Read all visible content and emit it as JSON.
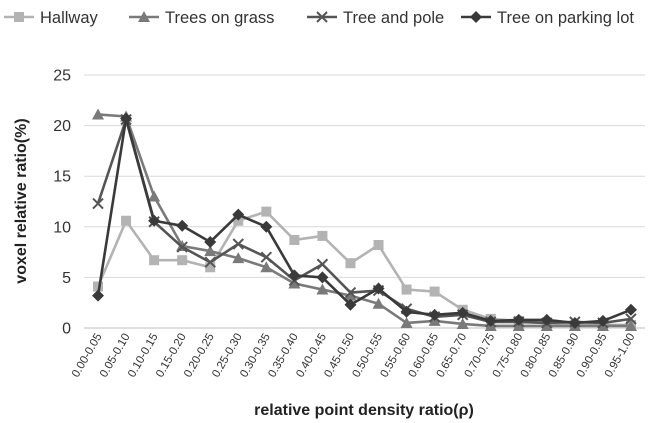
{
  "chart_data": {
    "type": "line",
    "title": "",
    "xlabel": "relative point density ratio(ρ)",
    "ylabel": "voxel relative ratio(%)",
    "ylim": [
      0,
      25
    ],
    "yticks": [
      0,
      5,
      10,
      15,
      20,
      25
    ],
    "grid": true,
    "legend_position": "top",
    "categories": [
      "0.00-0.05",
      "0.05-0.10",
      "0.10-0.15",
      "0.15-0.20",
      "0.20-0.25",
      "0.25-0.30",
      "0.30-0.35",
      "0.35-0.40",
      "0.40-0.45",
      "0.45-0.50",
      "0.50-0.55",
      "0.55-0.60",
      "0.60-0.65",
      "0.65-0.70",
      "0.70-0.75",
      "0.75-0.80",
      "0.80-0.85",
      "0.85-0.90",
      "0.90-0.95",
      "0.95-1.00"
    ],
    "series": [
      {
        "name": "Hallway",
        "color": "#b3b3b3",
        "marker": "square",
        "values": [
          4.1,
          10.6,
          6.7,
          6.7,
          6.0,
          10.6,
          11.5,
          8.7,
          9.1,
          6.4,
          8.2,
          3.8,
          3.6,
          1.8,
          0.9,
          0.7,
          0.5,
          0.3,
          0.3,
          0.3
        ]
      },
      {
        "name": "Trees on grass",
        "color": "#7a7a7a",
        "marker": "triangle",
        "values": [
          21.1,
          20.9,
          13.0,
          8.1,
          7.6,
          6.9,
          6.0,
          4.4,
          3.8,
          3.2,
          2.4,
          0.5,
          0.7,
          0.4,
          0.2,
          0.2,
          0.2,
          0.2,
          0.2,
          0.2
        ]
      },
      {
        "name": "Tree and pole",
        "color": "#555555",
        "marker": "x",
        "values": [
          12.3,
          20.6,
          10.5,
          8.0,
          6.5,
          8.3,
          7.0,
          4.7,
          6.3,
          3.5,
          3.7,
          1.9,
          1.1,
          1.3,
          0.6,
          0.6,
          0.5,
          0.6,
          0.5,
          0.9
        ]
      },
      {
        "name": "Tree on parking lot",
        "color": "#3a3a3a",
        "marker": "diamond",
        "values": [
          3.2,
          20.7,
          10.6,
          10.1,
          8.5,
          11.2,
          10.0,
          5.2,
          5.0,
          2.3,
          3.9,
          1.6,
          1.3,
          1.5,
          0.7,
          0.8,
          0.8,
          0.5,
          0.7,
          1.8
        ]
      }
    ]
  }
}
